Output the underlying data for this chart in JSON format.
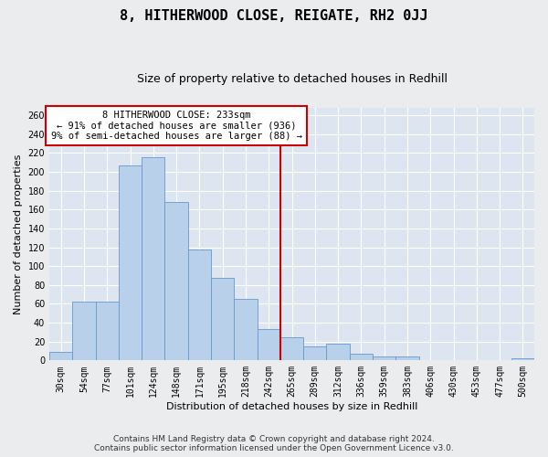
{
  "title": "8, HITHERWOOD CLOSE, REIGATE, RH2 0JJ",
  "subtitle": "Size of property relative to detached houses in Redhill",
  "xlabel": "Distribution of detached houses by size in Redhill",
  "ylabel": "Number of detached properties",
  "categories": [
    "30sqm",
    "54sqm",
    "77sqm",
    "101sqm",
    "124sqm",
    "148sqm",
    "171sqm",
    "195sqm",
    "218sqm",
    "242sqm",
    "265sqm",
    "289sqm",
    "312sqm",
    "336sqm",
    "359sqm",
    "383sqm",
    "406sqm",
    "430sqm",
    "453sqm",
    "477sqm",
    "500sqm"
  ],
  "values": [
    9,
    62,
    62,
    207,
    215,
    168,
    118,
    88,
    65,
    33,
    25,
    15,
    18,
    7,
    4,
    4,
    0,
    0,
    0,
    0,
    2
  ],
  "bar_color": "#b8d0ea",
  "bar_edgecolor": "#6699cc",
  "background_color": "#dde6f0",
  "grid_color": "#ffffff",
  "vline_color": "#cc0000",
  "vline_position": 9.5,
  "annotation_text": "8 HITHERWOOD CLOSE: 233sqm\n← 91% of detached houses are smaller (936)\n9% of semi-detached houses are larger (88) →",
  "annotation_box_edgecolor": "#cc0000",
  "fig_facecolor": "#eaecee",
  "footer": "Contains HM Land Registry data © Crown copyright and database right 2024.\nContains public sector information licensed under the Open Government Licence v3.0.",
  "ylim": [
    0,
    268
  ],
  "yticks": [
    0,
    20,
    40,
    60,
    80,
    100,
    120,
    140,
    160,
    180,
    200,
    220,
    240,
    260
  ],
  "title_fontsize": 11,
  "subtitle_fontsize": 9,
  "ylabel_fontsize": 8,
  "xlabel_fontsize": 8,
  "tick_fontsize": 7,
  "annotation_fontsize": 7.5,
  "footer_fontsize": 6.5
}
